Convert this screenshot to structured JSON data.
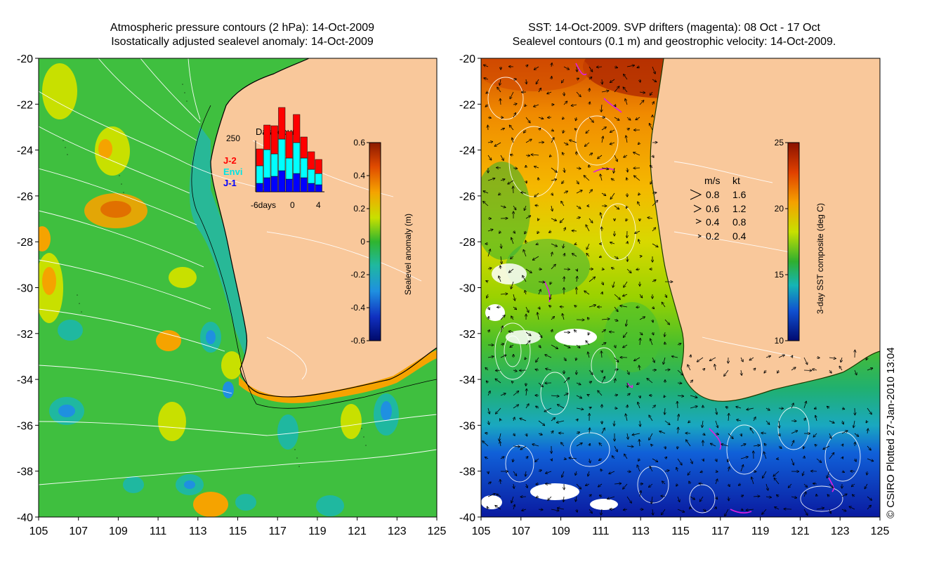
{
  "left_map": {
    "title_line1": "Atmospheric pressure contours (2 hPa): 14-Oct-2009",
    "title_line2": "Isostatically adjusted sealevel anomaly: 14-Oct-2009",
    "x_ticks": [
      "105",
      "107",
      "109",
      "111",
      "113",
      "115",
      "117",
      "119",
      "121",
      "123",
      "125"
    ],
    "y_ticks": [
      "-20",
      "-22",
      "-24",
      "-26",
      "-28",
      "-30",
      "-32",
      "-34",
      "-36",
      "-38",
      "-40"
    ],
    "colorbar": {
      "label": "Sealevel anomaly (m)",
      "ticks": [
        "0.6",
        "0.4",
        "0.2",
        "0",
        "-0.2",
        "-0.4",
        "-0.6"
      ]
    },
    "inset": {
      "title": "Data count",
      "y_max_label": "250",
      "x_tick_labels": [
        "-6days",
        "0",
        "4"
      ],
      "legend": [
        {
          "label": "J-2",
          "color": "#ff0000"
        },
        {
          "label": "Envi",
          "color": "#00ffff"
        },
        {
          "label": "J-1",
          "color": "#0000ff"
        }
      ]
    }
  },
  "right_map": {
    "title_line1": "SST: 14-Oct-2009. SVP drifters (magenta): 08 Oct - 17 Oct",
    "title_line2": "Sealevel contours (0.1 m) and geostrophic velocity: 14-Oct-2009.",
    "x_ticks": [
      "105",
      "107",
      "109",
      "111",
      "113",
      "115",
      "117",
      "119",
      "121",
      "123",
      "125"
    ],
    "y_ticks": [
      "-20",
      "-22",
      "-24",
      "-26",
      "-28",
      "-30",
      "-32",
      "-34",
      "-36",
      "-38",
      "-40"
    ],
    "colorbar": {
      "label": "3-day SST composite (deg C)",
      "ticks": [
        "25",
        "20",
        "15",
        "10"
      ]
    },
    "velocity_legend": {
      "header_ms": "m/s",
      "header_kt": "kt",
      "rows": [
        {
          "ms": "0.8",
          "kt": "1.6"
        },
        {
          "ms": "0.6",
          "kt": "1.2"
        },
        {
          "ms": "0.4",
          "kt": "0.8"
        },
        {
          "ms": "0.2",
          "kt": "0.4"
        }
      ]
    }
  },
  "credit": "© CSIRO Plotted 27-Jan-2010 13:04",
  "colors": {
    "land": "#f9c89b",
    "ocean_green": "#3fbf3f",
    "coast_line": "#000000",
    "shelf_cyan": "#22b5b5",
    "contour": "#ffffff",
    "drifter": "#e020e0"
  }
}
